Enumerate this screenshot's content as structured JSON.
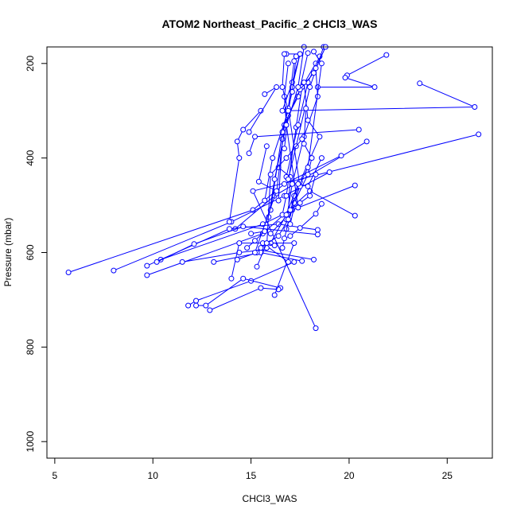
{
  "chart_data": {
    "type": "line",
    "title": "ATOM2 Northeast_Pacific_2 CHCl3_WAS",
    "xlabel": "CHCl3_WAS",
    "ylabel": "Pressure (mbar)",
    "xlim": [
      4.6,
      27.3
    ],
    "ylim": [
      1035,
      165
    ],
    "y_reversed": true,
    "x_ticks": [
      5,
      10,
      15,
      20,
      25
    ],
    "y_ticks": [
      200,
      400,
      600,
      800,
      1000
    ],
    "grid": false,
    "marker": "open-circle",
    "color": "#0000ff",
    "series": [
      {
        "x": [
          21.9,
          19.9
        ],
        "y": [
          182,
          225
        ]
      },
      {
        "x": [
          19.8,
          21.3,
          18.4
        ],
        "y": [
          230,
          250,
          250
        ]
      },
      {
        "x": [
          23.6,
          26.4,
          16.8
        ],
        "y": [
          242,
          292,
          300
        ]
      },
      {
        "x": [
          26.6,
          15.1,
          18.3
        ],
        "y": [
          350,
          470,
          760
        ]
      },
      {
        "x": [
          20.5,
          15.2,
          14.9
        ],
        "y": [
          340,
          355,
          390
        ]
      },
      {
        "x": [
          20.9,
          16.2,
          14.2
        ],
        "y": [
          365,
          480,
          550
        ]
      },
      {
        "x": [
          19.6,
          16.7,
          15.1,
          5.7
        ],
        "y": [
          395,
          455,
          510,
          642
        ]
      },
      {
        "x": [
          20.3,
          17.1,
          15.6,
          10.4
        ],
        "y": [
          458,
          510,
          540,
          615
        ]
      },
      {
        "x": [
          20.3,
          18.0,
          15.6,
          9.7
        ],
        "y": [
          522,
          470,
          560,
          648
        ]
      },
      {
        "x": [
          19.0,
          16.7,
          14.0,
          8.0
        ],
        "y": [
          430,
          480,
          535,
          638
        ]
      },
      {
        "x": [
          18.4,
          16.4,
          13.9,
          9.7
        ],
        "y": [
          552,
          540,
          550,
          628
        ]
      },
      {
        "x": [
          18.4,
          14.6,
          12.1,
          10.2
        ],
        "y": [
          562,
          545,
          582,
          620
        ]
      },
      {
        "x": [
          18.2,
          15.5,
          14.4,
          11.5
        ],
        "y": [
          615,
          595,
          600,
          620
        ]
      },
      {
        "x": [
          17.6,
          15.5,
          13.1
        ],
        "y": [
          618,
          600,
          620
        ]
      },
      {
        "x": [
          17.2,
          15.0,
          12.2,
          11.8
        ],
        "y": [
          620,
          660,
          702,
          712
        ]
      },
      {
        "x": [
          16.5,
          14.6,
          12.7,
          12.2
        ],
        "y": [
          675,
          655,
          712,
          712
        ]
      },
      {
        "x": [
          16.4,
          15.5,
          12.9
        ],
        "y": [
          678,
          675,
          722
        ]
      },
      {
        "x": [
          16.2,
          17.2,
          14.4,
          14.0
        ],
        "y": [
          690,
          580,
          580,
          655
        ]
      },
      {
        "x": [
          16.9,
          15.6,
          15.3,
          14.3
        ],
        "y": [
          620,
          580,
          600,
          615
        ]
      },
      {
        "x": [
          15.5,
          14.6,
          14.3,
          14.4,
          13.9
        ],
        "y": [
          300,
          340,
          365,
          400,
          535
        ]
      },
      {
        "x": [
          15.7,
          16.3,
          14.9
        ],
        "y": [
          265,
          250,
          345
        ]
      },
      {
        "x": [
          16.4,
          17.0,
          16.9,
          16.0
        ],
        "y": [
          420,
          440,
          520,
          560
        ]
      },
      {
        "x": [
          16.8,
          17.5,
          17.1,
          16.6
        ],
        "y": [
          180,
          180,
          240,
          300
        ]
      },
      {
        "x": [
          17.5,
          17.1,
          16.8,
          17.4
        ],
        "y": [
          180,
          250,
          330,
          505
        ]
      },
      {
        "x": [
          17.9,
          17.4,
          16.9,
          16.7
        ],
        "y": [
          178,
          270,
          310,
          380
        ]
      },
      {
        "x": [
          18.3,
          17.6,
          17.3,
          16.8,
          16.6
        ],
        "y": [
          200,
          250,
          335,
          480,
          520
        ]
      },
      {
        "x": [
          18.5,
          17.9,
          17.4,
          16.8
        ],
        "y": [
          185,
          240,
          330,
          440
        ]
      },
      {
        "x": [
          18.7,
          18.0,
          17.3,
          16.9
        ],
        "y": [
          165,
          250,
          375,
          445
        ]
      },
      {
        "x": [
          18.8,
          18.2,
          17.5,
          16.7,
          16.3
        ],
        "y": [
          165,
          220,
          255,
          330,
          475
        ]
      },
      {
        "x": [
          17.7,
          17.4,
          16.6,
          16.4
        ],
        "y": [
          165,
          250,
          360,
          490
        ]
      },
      {
        "x": [
          17.3,
          17.1,
          16.6,
          16.0
        ],
        "y": [
          185,
          260,
          345,
          510
        ]
      },
      {
        "x": [
          16.9,
          16.7,
          16.8,
          16.2,
          15.9
        ],
        "y": [
          200,
          270,
          330,
          445,
          525
        ]
      },
      {
        "x": [
          18.3,
          18.4,
          17.7,
          17.1,
          16.8
        ],
        "y": [
          210,
          270,
          355,
          455,
          530
        ]
      },
      {
        "x": [
          17.7,
          17.9,
          18.5,
          17.5,
          17.0
        ],
        "y": [
          240,
          320,
          355,
          450,
          540
        ]
      },
      {
        "x": [
          17.8,
          17.7,
          18.1,
          17.9,
          17.2,
          16.8
        ],
        "y": [
          295,
          370,
          400,
          435,
          495,
          550
        ]
      },
      {
        "x": [
          18.2,
          18.6,
          17.9,
          17.2,
          16.6
        ],
        "y": [
          175,
          200,
          420,
          480,
          590
        ]
      },
      {
        "x": [
          17.2,
          16.9,
          17.5,
          17.0
        ],
        "y": [
          195,
          295,
          460,
          510
        ]
      },
      {
        "x": [
          16.7,
          16.6,
          16.9,
          16.1,
          15.7
        ],
        "y": [
          180,
          250,
          300,
          400,
          490
        ]
      },
      {
        "x": [
          18.6,
          17.9,
          17.4,
          16.8,
          16.0
        ],
        "y": [
          400,
          460,
          455,
          520,
          580
        ]
      },
      {
        "x": [
          18.3,
          18.0,
          17.5,
          17.0
        ],
        "y": [
          435,
          480,
          495,
          510
        ]
      },
      {
        "x": [
          18.6,
          18.3,
          17.5,
          17.0,
          16.7
        ],
        "y": [
          497,
          518,
          548,
          565,
          570
        ]
      },
      {
        "x": [
          17.6,
          16.8,
          16.0,
          15.8
        ],
        "y": [
          360,
          400,
          435,
          590
        ]
      },
      {
        "x": [
          15.8,
          15.4,
          16.3,
          15.2
        ],
        "y": [
          375,
          450,
          470,
          600
        ]
      },
      {
        "x": [
          16.9,
          16.4,
          15.5
        ],
        "y": [
          530,
          565,
          590
        ]
      },
      {
        "x": [
          15.0,
          15.7,
          15.2,
          14.8
        ],
        "y": [
          560,
          555,
          575,
          590
        ]
      },
      {
        "x": [
          16.2,
          15.8,
          15.3
        ],
        "y": [
          585,
          580,
          630
        ]
      }
    ]
  }
}
